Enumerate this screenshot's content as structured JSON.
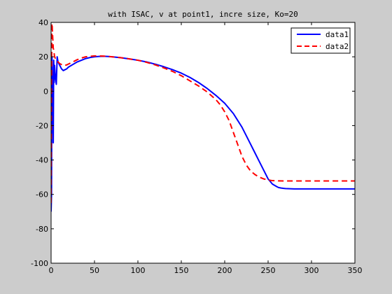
{
  "chart_data": {
    "type": "line",
    "title": "with ISAC, v at point1, incre size, Ko=20",
    "xlabel": "",
    "ylabel": "",
    "xlim": [
      0,
      350
    ],
    "ylim": [
      -100,
      40
    ],
    "xticks": [
      "0",
      "50",
      "100",
      "150",
      "200",
      "250",
      "300",
      "350"
    ],
    "yticks": [
      "40",
      "20",
      "0",
      "-20",
      "-40",
      "-60",
      "-80",
      "-100"
    ],
    "grid": false,
    "legend_position": "top-right",
    "series": [
      {
        "name": "data1",
        "color": "#0000ff",
        "style": "solid",
        "x": [
          0,
          0.5,
          1,
          1.5,
          2,
          2.5,
          3,
          3.5,
          4,
          5,
          6,
          7,
          8,
          10,
          12,
          14,
          16,
          18,
          20,
          25,
          30,
          35,
          40,
          45,
          50,
          55,
          60,
          65,
          70,
          80,
          90,
          100,
          110,
          120,
          130,
          140,
          150,
          160,
          170,
          180,
          190,
          200,
          210,
          215,
          220,
          225,
          230,
          235,
          240,
          245,
          250,
          255,
          260,
          262,
          265,
          268,
          270,
          275,
          280,
          290,
          300,
          310,
          320,
          330,
          340,
          350
        ],
        "y": [
          -70,
          -60,
          20,
          5,
          10,
          -30,
          18,
          5,
          15,
          8,
          4,
          20,
          17,
          15,
          13,
          12,
          12.5,
          13,
          14,
          15.5,
          17,
          18,
          19,
          19.6,
          20,
          20.2,
          20.3,
          20.2,
          20,
          19.5,
          18.8,
          18,
          17,
          15.7,
          14.2,
          12.5,
          10.5,
          8,
          5,
          1.5,
          -2.5,
          -7,
          -13,
          -17,
          -21,
          -26,
          -31,
          -36,
          -41,
          -46,
          -51,
          -54,
          -55.5,
          -56,
          -56.3,
          -56.5,
          -56.6,
          -56.7,
          -56.8,
          -56.8,
          -56.8,
          -56.8,
          -56.8,
          -56.8,
          -56.8,
          -56.8
        ]
      },
      {
        "name": "data2",
        "color": "#ff0000",
        "style": "dashed",
        "x": [
          0,
          0.5,
          1,
          1.5,
          2,
          2.5,
          3,
          3.5,
          4,
          6,
          8,
          10,
          12,
          14,
          16,
          18,
          20,
          25,
          30,
          35,
          40,
          45,
          50,
          55,
          60,
          65,
          70,
          80,
          90,
          100,
          110,
          120,
          130,
          140,
          150,
          160,
          170,
          180,
          190,
          195,
          200,
          205,
          210,
          215,
          220,
          225,
          230,
          235,
          240,
          245,
          250,
          255,
          260,
          270,
          280,
          290,
          300,
          310,
          320,
          330,
          340,
          350
        ],
        "y": [
          -65,
          10,
          42,
          35,
          30,
          25,
          24,
          22,
          20,
          18,
          17,
          16,
          15.5,
          15,
          15,
          15.3,
          15.8,
          17,
          18.3,
          19.3,
          20,
          20.3,
          20.5,
          20.5,
          20.4,
          20.2,
          20,
          19.5,
          18.8,
          18,
          16.8,
          15.3,
          13.5,
          11.5,
          9,
          6,
          3,
          -0.5,
          -5,
          -8,
          -12,
          -17,
          -24,
          -31,
          -38,
          -43,
          -46.5,
          -48.5,
          -50,
          -51,
          -51.6,
          -52,
          -52.1,
          -52.2,
          -52.2,
          -52.2,
          -52.2,
          -52.2,
          -52.2,
          -52.2,
          -52.2,
          -52.2
        ]
      }
    ]
  }
}
